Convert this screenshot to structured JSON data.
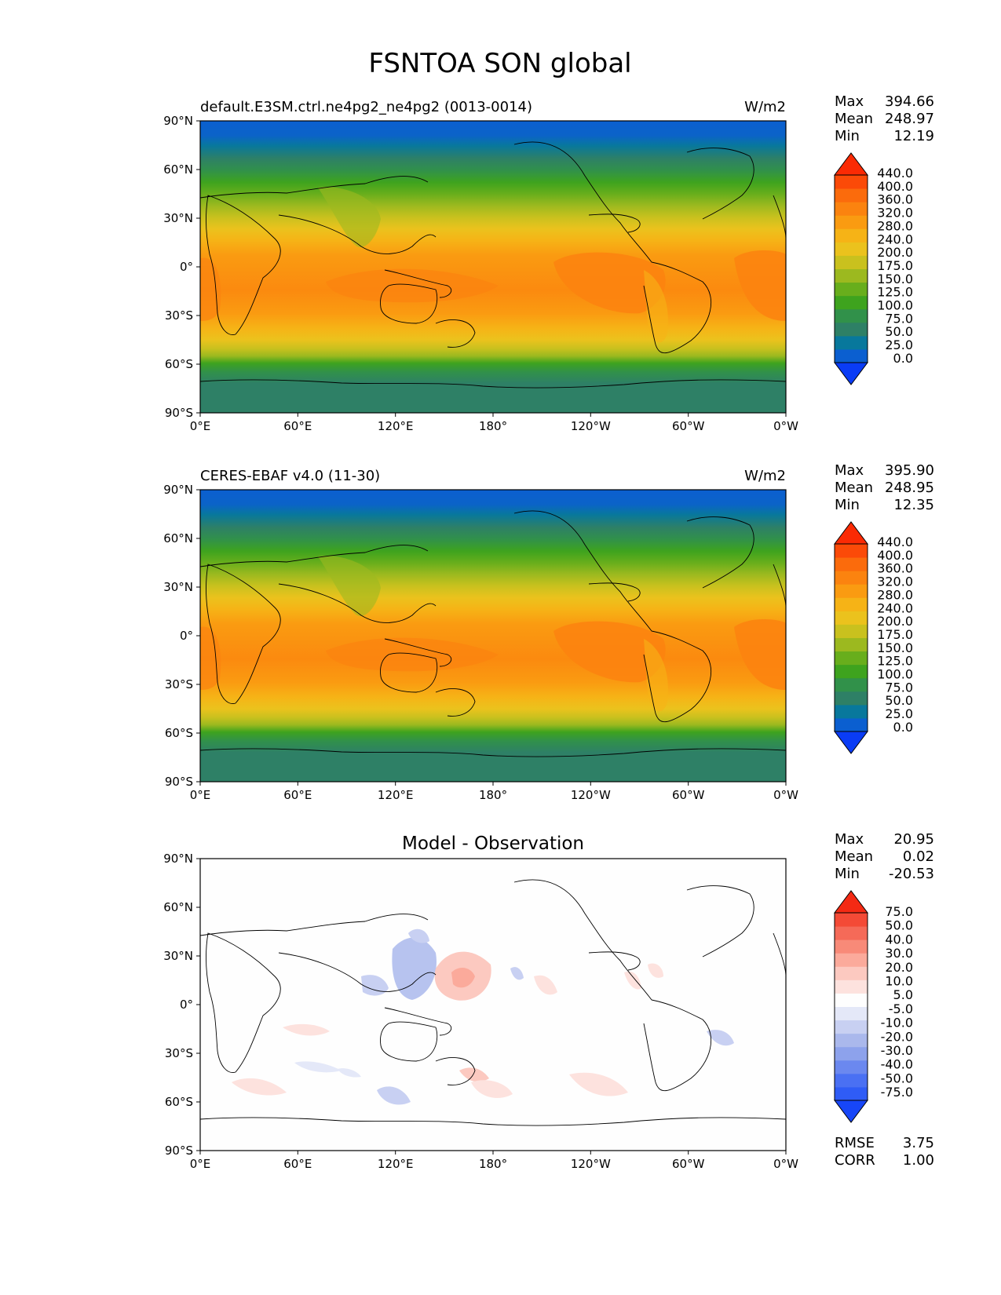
{
  "figure_title": "FSNTOA SON global",
  "tick_labels": {
    "lat": [
      "90°N",
      "60°N",
      "30°N",
      "0°",
      "30°S",
      "60°S",
      "90°S"
    ],
    "lon": [
      "0°E",
      "60°E",
      "120°E",
      "180°",
      "120°W",
      "60°W",
      "0°W"
    ]
  },
  "panels": [
    {
      "id": "model",
      "left_title": "default.E3SM.ctrl.ne4pg2_ne4pg2 (0013-0014)",
      "center_title": "",
      "units": "W/m2",
      "stats": [
        {
          "label": "Max",
          "value": "394.66"
        },
        {
          "label": "Mean",
          "value": "248.97"
        },
        {
          "label": "Min",
          "value": "12.19"
        }
      ],
      "extra_stats": [],
      "colorbar": {
        "ticks": [
          "440.0",
          "400.0",
          "360.0",
          "320.0",
          "280.0",
          "240.0",
          "200.0",
          "175.0",
          "150.0",
          "125.0",
          "100.0",
          "75.0",
          "50.0",
          "25.0",
          "0.0"
        ],
        "colors": [
          "#0a3cf5",
          "#0b5fd0",
          "#08789c",
          "#2e8066",
          "#31914a",
          "#3ea31e",
          "#68ae1c",
          "#9cb91f",
          "#c9c11e",
          "#ebc21d",
          "#f6b316",
          "#fa9b11",
          "#fb830f",
          "#fb6b0c",
          "#fb4a08",
          "#fb2a04"
        ]
      }
    },
    {
      "id": "obs",
      "left_title": "CERES-EBAF v4.0 (11-30)",
      "center_title": "",
      "units": "W/m2",
      "stats": [
        {
          "label": "Max",
          "value": "395.90"
        },
        {
          "label": "Mean",
          "value": "248.95"
        },
        {
          "label": "Min",
          "value": "12.35"
        }
      ],
      "extra_stats": [],
      "colorbar": {
        "ticks": [
          "440.0",
          "400.0",
          "360.0",
          "320.0",
          "280.0",
          "240.0",
          "200.0",
          "175.0",
          "150.0",
          "125.0",
          "100.0",
          "75.0",
          "50.0",
          "25.0",
          "0.0"
        ],
        "colors": [
          "#0a3cf5",
          "#0b5fd0",
          "#08789c",
          "#2e8066",
          "#31914a",
          "#3ea31e",
          "#68ae1c",
          "#9cb91f",
          "#c9c11e",
          "#ebc21d",
          "#f6b316",
          "#fa9b11",
          "#fb830f",
          "#fb6b0c",
          "#fb4a08",
          "#fb2a04"
        ]
      }
    },
    {
      "id": "diff",
      "left_title": "",
      "center_title": "Model - Observation",
      "units": "",
      "stats": [
        {
          "label": "Max",
          "value": "20.95"
        },
        {
          "label": "Mean",
          "value": "0.02"
        },
        {
          "label": "Min",
          "value": "-20.53"
        }
      ],
      "extra_stats": [
        {
          "label": "RMSE",
          "value": "3.75"
        },
        {
          "label": "CORR",
          "value": "1.00"
        }
      ],
      "colorbar": {
        "ticks": [
          "75.0",
          "50.0",
          "40.0",
          "30.0",
          "20.0",
          "10.0",
          "5.0",
          "-5.0",
          "-10.0",
          "-20.0",
          "-30.0",
          "-40.0",
          "-50.0",
          "-75.0"
        ],
        "colors": [
          "#1746f7",
          "#2f5cf6",
          "#4a70f3",
          "#6b88ef",
          "#8da2ec",
          "#aab8ec",
          "#c8d0f2",
          "#e4e8f8",
          "#fefefe",
          "#fde2de",
          "#fcc9c0",
          "#fbaa9b",
          "#f88a78",
          "#f56a58",
          "#f44a36",
          "#f42a14"
        ]
      }
    }
  ]
}
